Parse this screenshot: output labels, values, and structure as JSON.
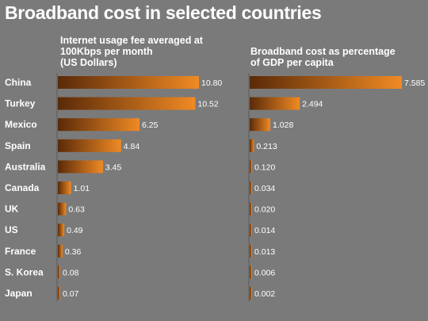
{
  "title": "Broadband cost in selected countries",
  "chart_data": [
    {
      "type": "bar",
      "orientation": "horizontal",
      "title": "Internet usage fee averaged at\n100Kbps per month\n(US Dollars)",
      "categories": [
        "China",
        "Turkey",
        "Mexico",
        "Spain",
        "Australia",
        "Canada",
        "UK",
        "US",
        "France",
        "S. Korea",
        "Japan"
      ],
      "values": [
        10.8,
        10.52,
        6.25,
        4.84,
        3.45,
        1.01,
        0.63,
        0.49,
        0.36,
        0.08,
        0.07
      ],
      "value_labels": [
        "10.80",
        "10.52",
        "6.25",
        "4.84",
        "3.45",
        "1.01",
        "0.63",
        "0.49",
        "0.36",
        "0.08",
        "0.07"
      ],
      "xlim": [
        0,
        10.8
      ],
      "grid": false
    },
    {
      "type": "bar",
      "orientation": "horizontal",
      "title": "Broadband cost as percentage\nof GDP per capita",
      "categories": [
        "China",
        "Turkey",
        "Mexico",
        "Spain",
        "Australia",
        "Canada",
        "UK",
        "US",
        "France",
        "S. Korea",
        "Japan"
      ],
      "values": [
        7.585,
        2.494,
        1.028,
        0.213,
        0.12,
        0.034,
        0.02,
        0.014,
        0.013,
        0.006,
        0.002
      ],
      "value_labels": [
        "7.585",
        "2.494",
        "1.028",
        "0.213",
        "0.120",
        "0.034",
        "0.020",
        "0.014",
        "0.013",
        "0.006",
        "0.002"
      ],
      "xlim": [
        0,
        7.585
      ],
      "grid": false
    }
  ],
  "colors": {
    "background": "#7a7a7a",
    "bar_dark": "#5a2a08",
    "bar_light": "#f08a24",
    "text": "#ffffff"
  }
}
